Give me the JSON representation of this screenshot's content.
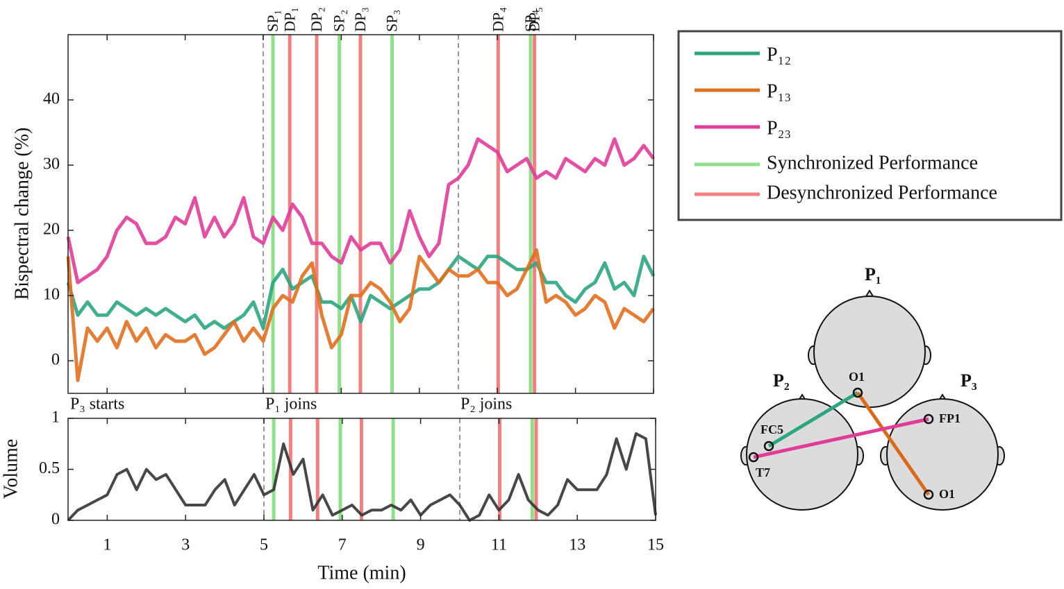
{
  "chart_data": [
    {
      "type": "line",
      "ylabel": "Bispectral change (%)",
      "xlim": [
        0,
        15
      ],
      "ylim": [
        -5,
        50
      ],
      "yticks": [
        0,
        10,
        20,
        30,
        40
      ],
      "x": [
        0,
        0.25,
        0.5,
        0.75,
        1,
        1.25,
        1.5,
        1.75,
        2,
        2.25,
        2.5,
        2.75,
        3,
        3.25,
        3.5,
        3.75,
        4,
        4.25,
        4.5,
        4.75,
        5,
        5.25,
        5.5,
        5.75,
        6,
        6.25,
        6.5,
        6.75,
        7,
        7.25,
        7.5,
        7.75,
        8,
        8.25,
        8.5,
        8.75,
        9,
        9.25,
        9.5,
        9.75,
        10,
        10.25,
        10.5,
        10.75,
        11,
        11.25,
        11.5,
        11.75,
        12,
        12.25,
        12.5,
        12.75,
        13,
        13.25,
        13.5,
        13.75,
        14,
        14.25,
        14.5,
        14.75,
        15
      ],
      "series": [
        {
          "name": "P₁₂",
          "color": "#2ca581",
          "values": [
            12,
            7,
            9,
            7,
            7,
            9,
            8,
            7,
            8,
            7,
            8,
            7,
            6,
            7,
            5,
            6,
            5,
            6,
            7,
            9,
            5,
            12,
            14,
            11,
            12,
            13,
            9,
            9,
            8,
            10,
            6,
            10,
            9,
            8,
            9,
            10,
            11,
            11,
            12,
            14,
            16,
            15,
            14,
            16,
            16,
            15,
            14,
            14,
            15,
            12,
            12,
            10,
            9,
            11,
            12,
            15,
            11,
            12,
            10,
            16,
            13
          ]
        },
        {
          "name": "P₁₃",
          "color": "#e0701e",
          "values": [
            16,
            -3,
            5,
            3,
            5,
            2,
            6,
            3,
            5,
            2,
            4,
            3,
            3,
            4,
            1,
            2,
            4,
            6,
            3,
            5,
            3,
            8,
            10,
            9,
            13,
            15,
            7,
            2,
            4,
            10,
            10,
            12,
            11,
            9,
            6,
            8,
            16,
            14,
            12,
            14,
            13,
            13,
            14,
            12,
            12,
            10,
            11,
            14,
            17,
            9,
            10,
            9,
            7,
            8,
            10,
            9,
            5,
            8,
            7,
            6,
            8
          ]
        },
        {
          "name": "P₂₃",
          "color": "#e03c98",
          "values": [
            19,
            12,
            13,
            14,
            16,
            20,
            22,
            21,
            18,
            18,
            19,
            22,
            21,
            25,
            19,
            22,
            19,
            21,
            25,
            19,
            18,
            22,
            20,
            24,
            22,
            18,
            18,
            16,
            15,
            19,
            17,
            18,
            18,
            15,
            17,
            23,
            19,
            16,
            18,
            27,
            28,
            30,
            34,
            33,
            32,
            29,
            30,
            31,
            28,
            29,
            28,
            31,
            30,
            29,
            31,
            30,
            34,
            30,
            31,
            33,
            31
          ]
        }
      ],
      "events": [
        {
          "name": "Synchronized Performance",
          "color": "#8ee08a",
          "x": [
            5.25,
            6.95,
            8.3,
            11.85
          ],
          "labels": [
            "SP₁",
            "SP₂",
            "SP₃",
            "SP₄"
          ]
        },
        {
          "name": "Desynchronized Performance",
          "color": "#f28080",
          "x": [
            5.68,
            6.37,
            7.49,
            11.02,
            11.95
          ],
          "labels": [
            "DP₁",
            "DP₂",
            "DP₃",
            "DP₄",
            "DP₅"
          ]
        }
      ],
      "annotations": [
        {
          "text": "P₃ starts",
          "x": 0
        },
        {
          "text": "P₁ joins",
          "x": 5
        },
        {
          "text": "P₂ joins",
          "x": 10
        }
      ]
    },
    {
      "type": "line",
      "ylabel": "Volume",
      "xlabel": "Time (min)",
      "xlim": [
        0,
        15
      ],
      "ylim": [
        0,
        1
      ],
      "yticks": [
        0,
        0.5,
        1
      ],
      "xticks": [
        1,
        3,
        5,
        7,
        9,
        11,
        13,
        15
      ],
      "color": "#333333",
      "x": [
        0,
        0.25,
        0.5,
        0.75,
        1,
        1.25,
        1.5,
        1.75,
        2,
        2.25,
        2.5,
        2.75,
        3,
        3.25,
        3.5,
        3.75,
        4,
        4.25,
        4.5,
        4.75,
        5,
        5.25,
        5.5,
        5.75,
        6,
        6.25,
        6.5,
        6.75,
        7,
        7.25,
        7.5,
        7.75,
        8,
        8.25,
        8.5,
        8.75,
        9,
        9.25,
        9.5,
        9.75,
        10,
        10.25,
        10.5,
        10.75,
        11,
        11.25,
        11.5,
        11.75,
        12,
        12.25,
        12.5,
        12.75,
        13,
        13.25,
        13.5,
        13.75,
        14,
        14.25,
        14.5,
        14.75,
        15
      ],
      "values": [
        0,
        0.1,
        0.15,
        0.2,
        0.25,
        0.45,
        0.5,
        0.3,
        0.5,
        0.4,
        0.45,
        0.3,
        0.15,
        0.15,
        0.15,
        0.3,
        0.4,
        0.15,
        0.3,
        0.45,
        0.25,
        0.3,
        0.75,
        0.45,
        0.6,
        0.1,
        0.25,
        0.05,
        0.1,
        0.15,
        0.05,
        0.1,
        0.1,
        0.15,
        0.1,
        0.2,
        0.05,
        0.15,
        0.2,
        0.25,
        0.15,
        0,
        0.05,
        0.25,
        0.1,
        0.2,
        0.45,
        0.2,
        0.1,
        0.05,
        0.15,
        0.4,
        0.3,
        0.3,
        0.3,
        0.45,
        0.8,
        0.5,
        0.85,
        0.8,
        0.05
      ]
    }
  ],
  "head_diagram": {
    "heads": [
      "P₁",
      "P₂",
      "P₃"
    ],
    "electrodes": [
      "O1",
      "FC5",
      "T7",
      "FP1",
      "O1"
    ]
  }
}
